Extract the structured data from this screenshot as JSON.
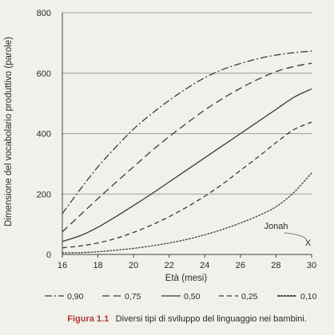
{
  "chart_data": {
    "type": "line",
    "title": "",
    "xlabel": "Età (mesi)",
    "ylabel": "Dimensione del vocabolario produttivo (parole)",
    "xlim": [
      16,
      30
    ],
    "ylim": [
      0,
      800
    ],
    "xticks": [
      16,
      18,
      20,
      22,
      24,
      26,
      28,
      30
    ],
    "yticks": [
      0,
      200,
      400,
      600,
      800
    ],
    "grid": "horizontal",
    "legend_position": "bottom",
    "series": [
      {
        "name": "0,90",
        "dash": "dashdot",
        "x": [
          16,
          17,
          18,
          19,
          20,
          21,
          22,
          23,
          24,
          25,
          26,
          27,
          28,
          29,
          30
        ],
        "values": [
          135,
          215,
          290,
          355,
          415,
          465,
          510,
          550,
          585,
          612,
          632,
          648,
          660,
          668,
          673
        ]
      },
      {
        "name": "0,75",
        "dash": "dashed-long",
        "x": [
          16,
          17,
          18,
          19,
          20,
          21,
          22,
          23,
          24,
          25,
          26,
          27,
          28,
          29,
          30
        ],
        "values": [
          75,
          130,
          185,
          238,
          290,
          342,
          390,
          435,
          478,
          516,
          550,
          580,
          605,
          622,
          633
        ]
      },
      {
        "name": "0,50",
        "dash": "solid",
        "x": [
          16,
          17,
          18,
          19,
          20,
          21,
          22,
          23,
          24,
          25,
          26,
          27,
          28,
          29,
          30
        ],
        "values": [
          43,
          62,
          90,
          125,
          162,
          200,
          240,
          280,
          320,
          360,
          400,
          440,
          480,
          520,
          548
        ]
      },
      {
        "name": "0,25",
        "dash": "dashed",
        "x": [
          16,
          17,
          18,
          19,
          20,
          21,
          22,
          23,
          24,
          25,
          26,
          27,
          28,
          29,
          30
        ],
        "values": [
          22,
          28,
          38,
          53,
          73,
          97,
          125,
          157,
          193,
          233,
          278,
          323,
          370,
          413,
          438
        ]
      },
      {
        "name": "0,10",
        "dash": "dotted",
        "x": [
          16,
          17,
          18,
          19,
          20,
          21,
          22,
          23,
          24,
          25,
          26,
          27,
          28,
          29,
          30
        ],
        "values": [
          5,
          6,
          9,
          14,
          20,
          28,
          38,
          50,
          65,
          83,
          104,
          128,
          158,
          205,
          270
        ]
      }
    ],
    "annotations": [
      {
        "label": "Jonah",
        "marker": "X",
        "x": 29.8,
        "y": 40
      }
    ]
  },
  "caption": {
    "label": "Figura 1.1",
    "text": "Diversi tipi di sviluppo del linguaggio nei bambini."
  }
}
